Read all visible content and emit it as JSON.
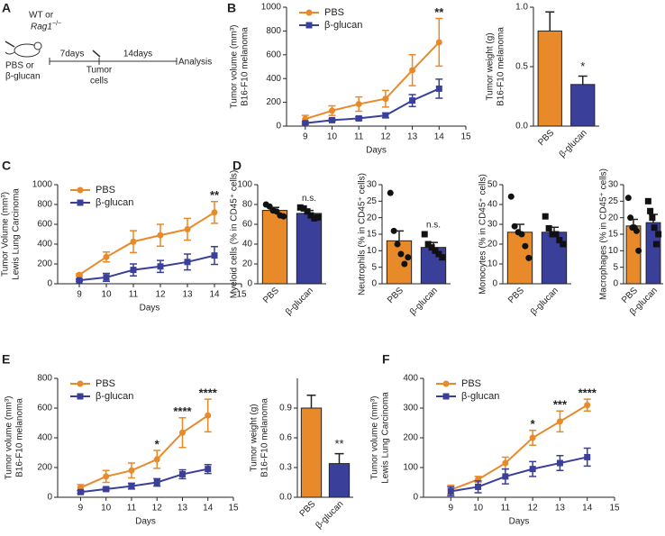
{
  "schematic": {
    "label": "A",
    "mouse_text": "WT or",
    "strain": "Rag1",
    "strain_superscript": "−/−",
    "treatment": [
      "PBS or",
      "β-glucan"
    ],
    "interval1": "7days",
    "injection": [
      "Tumor",
      "cells"
    ],
    "interval2": "14days",
    "endpoint": "Analysis"
  },
  "chart_data": [
    {
      "panel": "B",
      "type": "line",
      "ylabel": [
        "Tumor volume (mm³)",
        "B16-F10 melanoma"
      ],
      "xlabel": "Days",
      "x": [
        9,
        10,
        11,
        12,
        13,
        14
      ],
      "xlim": [
        8.3,
        15
      ],
      "xticks": [
        9,
        10,
        11,
        12,
        13,
        14,
        15
      ],
      "ylim": [
        0,
        1000
      ],
      "yticks": [
        0,
        200,
        400,
        600,
        800,
        1000
      ],
      "legend": "upper left",
      "series": [
        {
          "name": "PBS",
          "color": "#e8892a",
          "marker": "circle",
          "values": [
            60,
            130,
            185,
            230,
            470,
            705
          ],
          "errors": [
            30,
            40,
            60,
            70,
            130,
            200
          ]
        },
        {
          "name": "β-glucan",
          "color": "#3a3f9a",
          "marker": "square",
          "values": [
            25,
            50,
            65,
            90,
            215,
            315
          ],
          "errors": [
            10,
            10,
            15,
            20,
            50,
            80
          ]
        }
      ],
      "annotations": [
        {
          "text": "**",
          "x": 14
        }
      ]
    },
    {
      "type": "bar",
      "ylabel": [
        "Tumor weight (g)",
        "B16-F10 melanoma"
      ],
      "categories": [
        "PBS",
        "β-glucan"
      ],
      "values": [
        0.8,
        0.35
      ],
      "errors": [
        0.16,
        0.07
      ],
      "colors": [
        "#e8892a",
        "#3a3f9a"
      ],
      "ylim": [
        0,
        1.0
      ],
      "yticks": [
        {
          "value": 0,
          "label": "0.0"
        },
        {
          "value": 0.5,
          "label": "0.5"
        },
        {
          "value": 1.0,
          "label": "1.0"
        }
      ],
      "annotations": [
        {
          "text": "*",
          "category": "β-glucan"
        }
      ]
    },
    {
      "panel": "C",
      "type": "line",
      "ylabel": [
        "Tumor Volume (mm³)",
        "Lewis Lung Carcinoma"
      ],
      "xlabel": "Days",
      "x": [
        9,
        10,
        11,
        12,
        13,
        14
      ],
      "xlim": [
        8.2,
        15
      ],
      "xticks": [
        9,
        10,
        11,
        12,
        13,
        14,
        15
      ],
      "ylim": [
        0,
        1000
      ],
      "yticks": [
        0,
        200,
        400,
        600,
        800,
        1000
      ],
      "legend": "upper left",
      "series": [
        {
          "name": "PBS",
          "color": "#e8892a",
          "marker": "circle",
          "values": [
            90,
            270,
            425,
            490,
            550,
            720
          ],
          "errors": [
            10,
            50,
            110,
            110,
            110,
            110
          ]
        },
        {
          "name": "β-glucan",
          "color": "#3a3f9a",
          "marker": "square",
          "values": [
            35,
            65,
            140,
            175,
            220,
            285
          ],
          "errors": [
            10,
            40,
            60,
            60,
            80,
            90
          ]
        }
      ],
      "annotations": [
        {
          "text": "**",
          "x": 14
        }
      ]
    },
    {
      "panel": "D",
      "type": "bar",
      "ylabel": [
        "Myeloid cells (% in CD45⁺ cells)"
      ],
      "categories": [
        "PBS",
        "β-glucan"
      ],
      "values": [
        74,
        71
      ],
      "errors": [
        3,
        3
      ],
      "colors": [
        "#e8892a",
        "#3a3f9a"
      ],
      "points": [
        [
          80,
          78,
          74,
          73,
          69,
          68
        ],
        [
          77,
          76,
          73,
          69,
          66,
          67
        ]
      ],
      "ylim": [
        0,
        100
      ],
      "yticks": [
        0,
        20,
        40,
        60,
        80,
        100
      ],
      "annotations": [
        {
          "text": "n.s.",
          "category": "β-glucan"
        }
      ]
    },
    {
      "type": "bar",
      "ylabel": [
        "Neutrophils (% in CD45⁺ cells)"
      ],
      "categories": [
        "PBS",
        "β-glucan"
      ],
      "values": [
        13,
        11
      ],
      "errors": [
        3,
        1.5
      ],
      "colors": [
        "#e8892a",
        "#3a3f9a"
      ],
      "points": [
        [
          27.5,
          16,
          12,
          9,
          6,
          8
        ],
        [
          15,
          12,
          11,
          10,
          9,
          8
        ]
      ],
      "ylim": [
        0,
        30
      ],
      "yticks": [
        0,
        5,
        10,
        15,
        20,
        25,
        30
      ],
      "annotations": [
        {
          "text": "n.s.",
          "category": "β-glucan"
        }
      ]
    },
    {
      "type": "bar",
      "ylabel": [
        "Monocytes (% in CD45⁺ cells)"
      ],
      "categories": [
        "PBS",
        "β-glucan"
      ],
      "values": [
        26,
        26
      ],
      "errors": [
        4,
        2.5
      ],
      "colors": [
        "#e8892a",
        "#3a3f9a"
      ],
      "points": [
        [
          44,
          29,
          26,
          25,
          19,
          13
        ],
        [
          34,
          28,
          25,
          25,
          22,
          20
        ]
      ],
      "ylim": [
        0,
        50
      ],
      "yticks": [
        0,
        10,
        20,
        30,
        40,
        50
      ]
    },
    {
      "type": "bar",
      "ylabel": [
        "Macrophages (% in CD45⁺ cells)"
      ],
      "categories": [
        "PBS",
        "β-glucan"
      ],
      "values": [
        17.5,
        18.5
      ],
      "errors": [
        2,
        2.5
      ],
      "colors": [
        "#e8892a",
        "#3a3f9a"
      ],
      "points": [
        [
          26,
          20,
          17,
          17,
          16,
          10
        ],
        [
          25,
          22,
          20,
          17,
          12,
          15
        ]
      ],
      "ylim": [
        0,
        30
      ],
      "yticks": [
        0,
        5,
        10,
        15,
        20,
        25,
        30
      ]
    },
    {
      "panel": "E",
      "type": "line",
      "ylabel": [
        "Tumor volume (mm³)",
        "B16-F10 melanoma"
      ],
      "xlabel": "Days",
      "x": [
        9,
        10,
        11,
        12,
        13,
        14
      ],
      "xlim": [
        8.1,
        15
      ],
      "xticks": [
        9,
        10,
        11,
        12,
        13,
        14,
        15
      ],
      "ylim": [
        0,
        800
      ],
      "yticks": [
        0,
        200,
        400,
        600,
        800
      ],
      "legend": "upper left",
      "series": [
        {
          "name": "PBS",
          "color": "#e8892a",
          "marker": "circle",
          "values": [
            65,
            140,
            180,
            255,
            435,
            550
          ],
          "errors": [
            20,
            40,
            50,
            60,
            100,
            110
          ]
        },
        {
          "name": "β-glucan",
          "color": "#3a3f9a",
          "marker": "square",
          "values": [
            35,
            55,
            75,
            100,
            155,
            190
          ],
          "errors": [
            10,
            10,
            20,
            25,
            30,
            30
          ]
        }
      ],
      "annotations": [
        {
          "text": "*",
          "x": 12
        },
        {
          "text": "****",
          "x": 13
        },
        {
          "text": "****",
          "x": 14
        }
      ]
    },
    {
      "type": "bar",
      "ylabel": [
        "Tumor weight (g)",
        "B16-F10 melanoma"
      ],
      "categories": [
        "PBS",
        "β-glucan"
      ],
      "values": [
        0.9,
        0.34
      ],
      "errors": [
        0.13,
        0.1
      ],
      "colors": [
        "#e8892a",
        "#3a3f9a"
      ],
      "ylim": [
        0,
        1.2
      ],
      "yticks": [
        {
          "value": 0,
          "label": "0.0"
        },
        {
          "value": 0.3,
          "label": "0.3"
        },
        {
          "value": 0.6,
          "label": "0.6"
        },
        {
          "value": 0.9,
          "label": "0.9"
        }
      ],
      "annotations": [
        {
          "text": "**",
          "category": "β-glucan"
        }
      ]
    },
    {
      "panel": "F",
      "type": "line",
      "ylabel": [
        "Tumor volume (mm³)",
        "Lewis Lung Carcinoma"
      ],
      "xlabel": "Days",
      "x": [
        9,
        10,
        11,
        12,
        13,
        14
      ],
      "xlim": [
        8,
        15
      ],
      "xticks": [
        9,
        10,
        11,
        12,
        13,
        14,
        15
      ],
      "ylim": [
        0,
        400
      ],
      "yticks": [
        0,
        100,
        200,
        300,
        400
      ],
      "legend": "upper left",
      "series": [
        {
          "name": "PBS",
          "color": "#e8892a",
          "marker": "circle",
          "values": [
            25,
            60,
            115,
            200,
            255,
            310
          ],
          "errors": [
            15,
            10,
            20,
            25,
            35,
            20
          ]
        },
        {
          "name": "β-glucan",
          "color": "#3a3f9a",
          "marker": "square",
          "values": [
            20,
            35,
            70,
            95,
            115,
            135
          ],
          "errors": [
            15,
            20,
            25,
            25,
            25,
            30
          ]
        }
      ],
      "annotations": [
        {
          "text": "*",
          "x": 12
        },
        {
          "text": "***",
          "x": 13
        },
        {
          "text": "****",
          "x": 14
        }
      ]
    }
  ]
}
